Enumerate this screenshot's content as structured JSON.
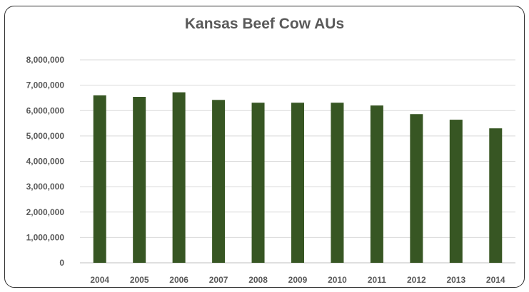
{
  "chart_data": {
    "type": "bar",
    "title": "Kansas Beef Cow AUs",
    "xlabel": "",
    "ylabel": "",
    "categories": [
      "2004",
      "2005",
      "2006",
      "2007",
      "2008",
      "2009",
      "2010",
      "2011",
      "2012",
      "2013",
      "2014"
    ],
    "values": [
      6600000,
      6540000,
      6720000,
      6420000,
      6310000,
      6310000,
      6310000,
      6200000,
      5860000,
      5640000,
      5300000
    ],
    "ylim": [
      0,
      8000000
    ],
    "yticks": [
      "0",
      "1,000,000",
      "2,000,000",
      "3,000,000",
      "4,000,000",
      "5,000,000",
      "6,000,000",
      "7,000,000",
      "8,000,000"
    ],
    "grid": true,
    "legend": "none",
    "bar_color": "#375623"
  }
}
